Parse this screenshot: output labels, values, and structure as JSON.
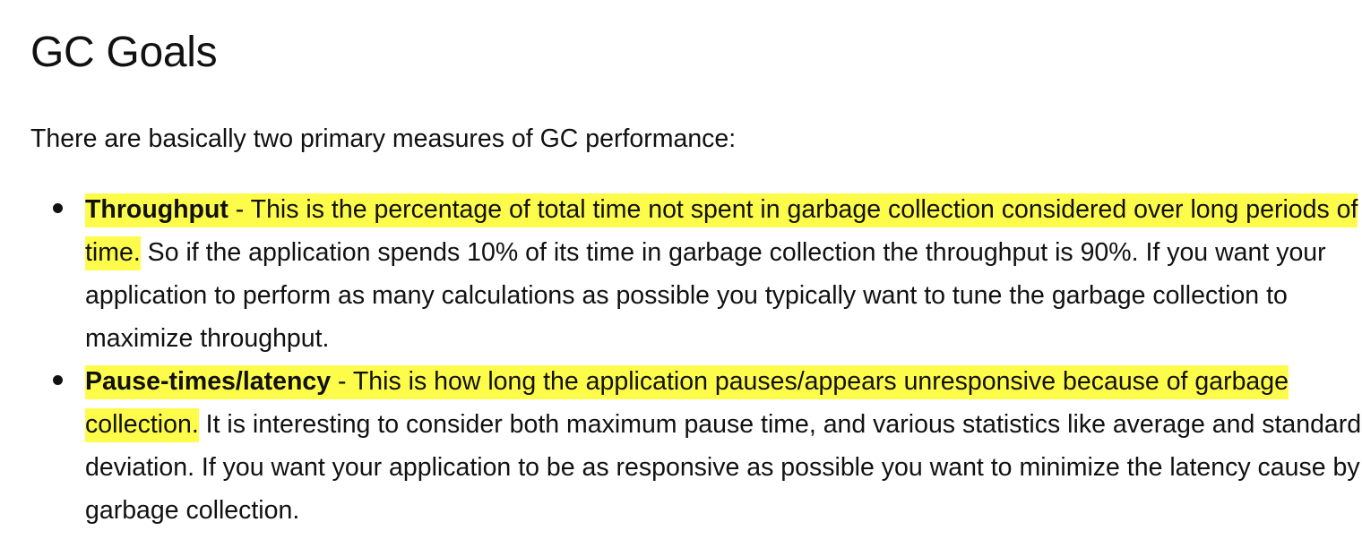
{
  "heading": "GC Goals",
  "intro": "There are basically two primary measures of GC performance:",
  "goals": [
    {
      "term": "Throughput",
      "highlighted_definition": " - This is the percentage of total time not spent in garbage collection considered over long periods of time.",
      "rest": " So if the application spends 10% of its time in garbage collection the throughput is 90%. If you want your application to perform as many calculations as possible you typically want to tune the garbage collection to maximize throughput."
    },
    {
      "term": "Pause-times/latency",
      "highlighted_definition": " - This is how long the application pauses/appears unresponsive because of garbage collection.",
      "rest": " It is interesting to consider both maximum pause time, and various statistics like average and standard deviation. If you want your application to be as responsive as possible you want to minimize the latency cause by garbage collection."
    }
  ],
  "colors": {
    "highlight": "#fefc4a",
    "text": "#111111"
  }
}
